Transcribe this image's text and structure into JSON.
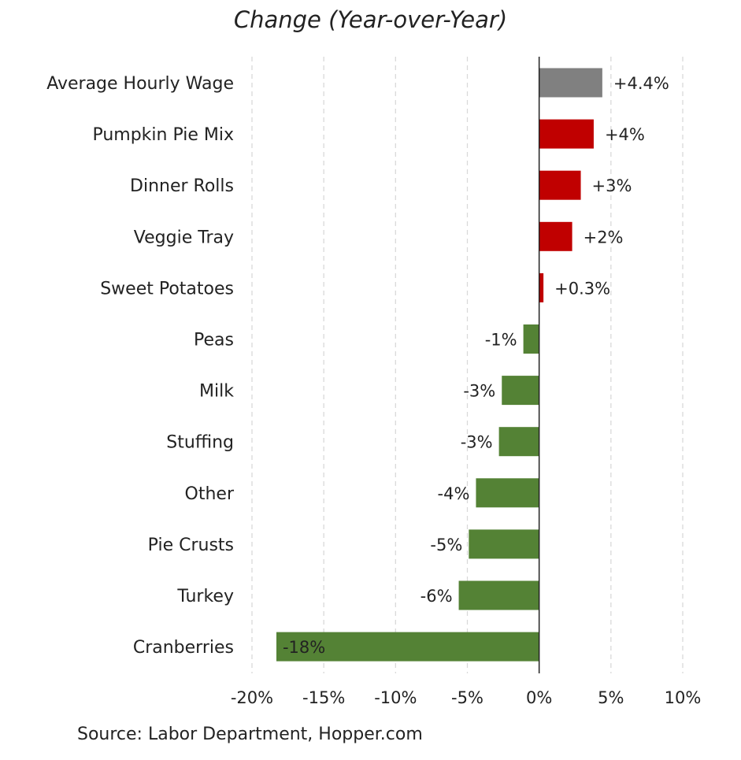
{
  "chart_data": {
    "type": "bar",
    "orientation": "horizontal",
    "title": "Change (Year-over-Year)",
    "source": "Source: Labor Department, Hopper.com",
    "categories": [
      "Average Hourly Wage",
      "Pumpkin Pie Mix",
      "Dinner Rolls",
      "Veggie Tray",
      "Sweet Potatoes",
      "Peas",
      "Milk",
      "Stuffing",
      "Other",
      "Pie Crusts",
      "Turkey",
      "Cranberries"
    ],
    "values": [
      4.4,
      3.8,
      2.9,
      2.3,
      0.3,
      -1.1,
      -2.6,
      -2.8,
      -4.4,
      -4.9,
      -5.6,
      -18.3
    ],
    "data_labels": [
      "+4.4%",
      "+4%",
      "+3%",
      "+2%",
      "+0.3%",
      "-1%",
      "-3%",
      "-3%",
      "-4%",
      "-5%",
      "-6%",
      "-18%"
    ],
    "bar_colors": [
      "#808080",
      "#c00000",
      "#c00000",
      "#c00000",
      "#c00000",
      "#548235",
      "#548235",
      "#548235",
      "#548235",
      "#548235",
      "#548235",
      "#548235"
    ],
    "xlim": [
      -20,
      10
    ],
    "xticks": [
      -20,
      -15,
      -10,
      -5,
      0,
      5,
      10
    ],
    "xtick_labels": [
      "-20%",
      "-15%",
      "-10%",
      "-5%",
      "0%",
      "5%",
      "10%"
    ],
    "grid": "vertical dashed",
    "legend": "none"
  }
}
